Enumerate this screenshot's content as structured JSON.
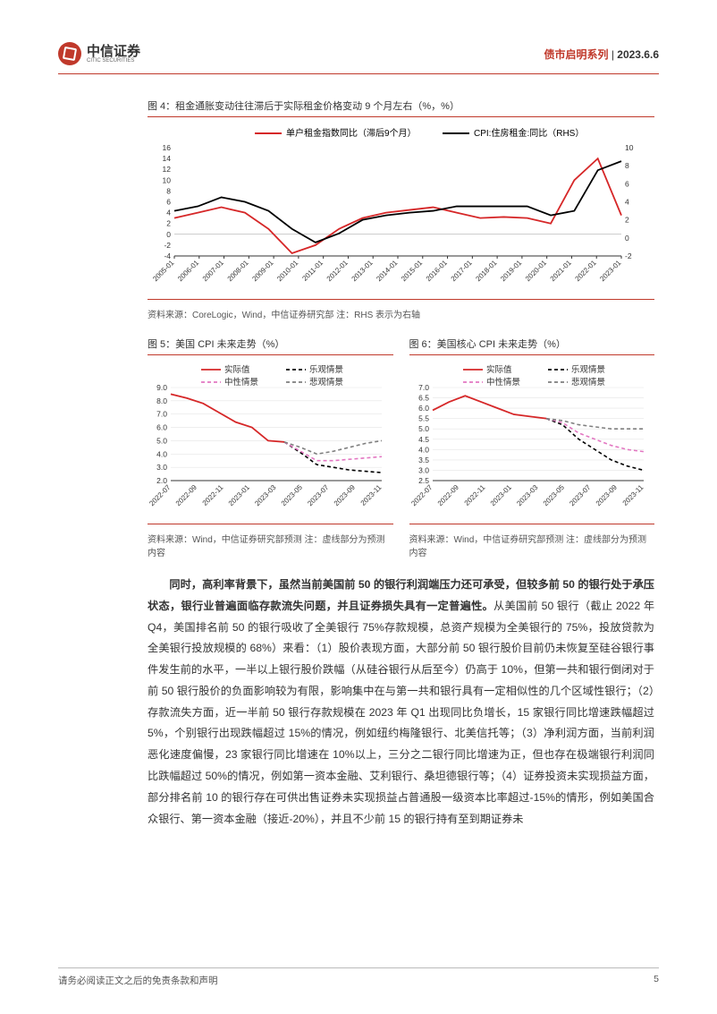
{
  "header": {
    "logo_cn": "中信证券",
    "logo_en": "CITIC SECURITIES",
    "series": "债市启明系列",
    "date": "2023.6.6",
    "separator": " | "
  },
  "chart4": {
    "title": "图 4：租金通胀变动往往滞后于实际租金价格变动 9 个月左右（%，%）",
    "legend1": "单户租金指数同比（滞后9个月）",
    "legend2": "CPI:住房租金:同比（RHS）",
    "source": "资料来源：CoreLogic，Wind，中信证券研究部  注：RHS 表示为右轴",
    "x_labels": [
      "2005-01",
      "2006-01",
      "2007-01",
      "2008-01",
      "2009-01",
      "2010-01",
      "2011-01",
      "2012-01",
      "2013-01",
      "2014-01",
      "2015-01",
      "2016-01",
      "2017-01",
      "2018-01",
      "2019-01",
      "2020-01",
      "2021-01",
      "2022-01",
      "2023-01"
    ],
    "y_left_min": -4,
    "y_left_max": 16,
    "y_left_step": 2,
    "y_right_min": -2,
    "y_right_max": 10,
    "y_right_step": 2,
    "series_red": [
      3,
      4,
      5,
      4,
      1,
      -3.5,
      -2,
      1,
      3,
      4,
      4.5,
      5,
      4,
      3,
      3.2,
      3,
      2,
      10,
      14,
      3.5
    ],
    "series_black": [
      3,
      3.5,
      4.5,
      4,
      3,
      1,
      -0.5,
      0.5,
      2,
      2.5,
      2.8,
      3,
      3.5,
      3.5,
      3.5,
      3.5,
      2.5,
      3,
      7.5,
      8.5
    ],
    "color_red": "#d62728",
    "color_black": "#000000",
    "grid_color": "#d9d9d9",
    "bg": "#ffffff"
  },
  "chart5": {
    "title": "图 5：美国 CPI 未来走势（%）",
    "legend": [
      "实际值",
      "乐观情景",
      "中性情景",
      "悲观情景"
    ],
    "source": "资料来源：Wind，中信证券研究部预测  注：虚线部分为预测内容",
    "x_labels": [
      "2022-07",
      "2022-09",
      "2022-11",
      "2023-01",
      "2023-03",
      "2023-05",
      "2023-07",
      "2023-09",
      "2023-11"
    ],
    "y_min": 2.0,
    "y_max": 9.0,
    "y_step": 1.0,
    "actual": [
      8.5,
      8.2,
      7.8,
      7.1,
      6.4,
      6.0,
      5.0,
      4.9
    ],
    "optimistic": [
      4.9,
      4.1,
      3.2,
      3.0,
      2.8,
      2.7,
      2.6
    ],
    "neutral": [
      4.9,
      4.2,
      3.5,
      3.5,
      3.6,
      3.7,
      3.8
    ],
    "pessimistic": [
      4.9,
      4.5,
      4.0,
      4.2,
      4.5,
      4.8,
      5.0
    ],
    "color_actual": "#d62728",
    "color_opt": "#000000",
    "color_neu": "#e377c2",
    "color_pes": "#7f7f7f"
  },
  "chart6": {
    "title": "图 6：美国核心 CPI 未来走势（%）",
    "legend": [
      "实际值",
      "乐观情景",
      "中性情景",
      "悲观情景"
    ],
    "source": "资料来源：Wind，中信证券研究部预测  注：虚线部分为预测内容",
    "x_labels": [
      "2022-07",
      "2022-09",
      "2022-11",
      "2023-01",
      "2023-03",
      "2023-05",
      "2023-07",
      "2023-09",
      "2023-11"
    ],
    "y_min": 2.5,
    "y_max": 7.0,
    "y_step": 0.5,
    "actual": [
      5.9,
      6.3,
      6.6,
      6.3,
      6.0,
      5.7,
      5.6,
      5.5
    ],
    "optimistic": [
      5.5,
      5.2,
      4.5,
      4.0,
      3.5,
      3.2,
      3.0
    ],
    "neutral": [
      5.5,
      5.3,
      4.8,
      4.5,
      4.2,
      4.0,
      3.9
    ],
    "pessimistic": [
      5.5,
      5.4,
      5.2,
      5.1,
      5.0,
      5.0,
      5.0
    ],
    "color_actual": "#d62728",
    "color_opt": "#000000",
    "color_neu": "#e377c2",
    "color_pes": "#7f7f7f"
  },
  "body": {
    "bold_intro": "同时，高利率背景下，虽然当前美国前 50 的银行利润端压力还可承受，但较多前 50 的银行处于承压状态，银行业普遍面临存款流失问题，并且证券损失具有一定普遍性。",
    "para": "从美国前 50 银行（截止 2022 年 Q4，美国排名前 50 的银行吸收了全美银行 75%存款规模，总资产规模为全美银行的 75%，投放贷款为全美银行投放规模的 68%）来看：（1）股价表现方面，大部分前 50 银行股价目前仍未恢复至硅谷银行事件发生前的水平，一半以上银行股价跌幅（从硅谷银行从后至今）仍高于 10%，但第一共和银行倒闭对于前 50 银行股价的负面影响较为有限，影响集中在与第一共和银行具有一定相似性的几个区域性银行；（2）存款流失方面，近一半前 50 银行存款规模在 2023 年 Q1 出现同比负增长，15 家银行同比增速跌幅超过 5%，个别银行出现跌幅超过 15%的情况，例如纽约梅隆银行、北美信托等；（3）净利润方面，当前利润恶化速度偏慢，23 家银行同比增速在 10%以上，三分之二银行同比增速为正，但也存在极端银行利润同比跌幅超过 50%的情况，例如第一资本金融、艾利银行、桑坦德银行等；（4）证券投资未实现损益方面，部分排名前 10 的银行存在可供出售证券未实现损益占普通股一级资本比率超过-15%的情形，例如美国合众银行、第一资本金融（接近-20%），并且不少前 15 的银行持有至到期证券未"
  },
  "footer": {
    "disclaimer": "请务必阅读正文之后的免责条款和声明",
    "page": "5"
  }
}
